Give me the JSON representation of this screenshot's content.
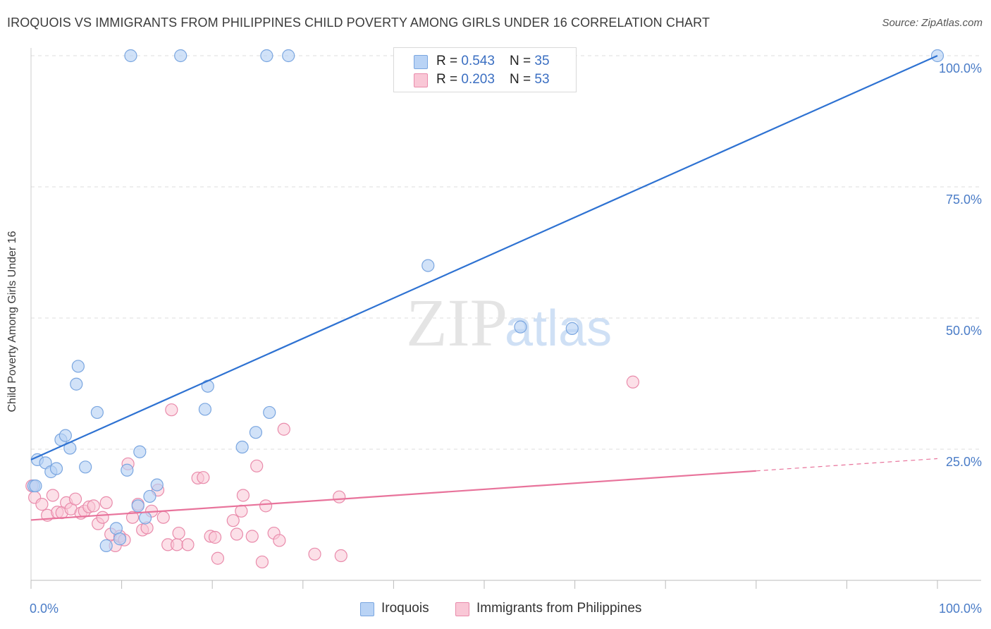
{
  "header": {
    "title": "IROQUOIS VS IMMIGRANTS FROM PHILIPPINES CHILD POVERTY AMONG GIRLS UNDER 16 CORRELATION CHART",
    "source": "Source: ZipAtlas.com"
  },
  "watermark": {
    "zip": "ZIP",
    "atlas": "atlas"
  },
  "legend": {
    "rows": [
      {
        "r_label": "R = ",
        "r_value": "0.543",
        "n_label": "N = ",
        "n_value": "35"
      },
      {
        "r_label": "R = ",
        "r_value": "0.203",
        "n_label": "N = ",
        "n_value": "53"
      }
    ]
  },
  "bottom_legend": {
    "items": [
      {
        "label": "Iroquois"
      },
      {
        "label": "Immigrants from Philippines"
      }
    ]
  },
  "colors": {
    "iroquois_fill": "#b9d3f5",
    "iroquois_stroke": "#7aa6e0",
    "iroquois_line": "#2e72d2",
    "philippines_fill": "#f9c7d6",
    "philippines_stroke": "#e98bab",
    "philippines_line": "#e8739b",
    "tick_text": "#4a7cc7",
    "grid": "#dddddd"
  },
  "chart_data": {
    "type": "scatter",
    "title": "IROQUOIS VS IMMIGRANTS FROM PHILIPPINES CHILD POVERTY AMONG GIRLS UNDER 16 CORRELATION CHART",
    "xlabel": "",
    "ylabel": "Child Poverty Among Girls Under 16",
    "xlim": [
      0,
      100
    ],
    "ylim": [
      0,
      100
    ],
    "x_tick_labels": [
      "0.0%",
      "100.0%"
    ],
    "y_tick_labels": [
      "25.0%",
      "50.0%",
      "75.0%",
      "100.0%"
    ],
    "y_ticks": [
      25,
      50,
      75,
      100
    ],
    "grid": true,
    "legend_placement": "top-center",
    "series": [
      {
        "name": "Iroquois",
        "r": 0.543,
        "n": 35,
        "trend": {
          "x": [
            0,
            100
          ],
          "y": [
            23.0,
            100.0
          ],
          "dashed_from": null
        },
        "points": [
          [
            0.3,
            18.0
          ],
          [
            0.5,
            18.0
          ],
          [
            0.7,
            23.0
          ],
          [
            1.6,
            22.4
          ],
          [
            2.2,
            20.7
          ],
          [
            2.8,
            21.3
          ],
          [
            3.3,
            26.8
          ],
          [
            3.8,
            27.6
          ],
          [
            4.3,
            25.2
          ],
          [
            5.0,
            37.4
          ],
          [
            5.2,
            40.8
          ],
          [
            6.0,
            21.6
          ],
          [
            7.3,
            32.0
          ],
          [
            8.3,
            6.6
          ],
          [
            9.4,
            9.9
          ],
          [
            9.8,
            7.9
          ],
          [
            10.6,
            21.0
          ],
          [
            11.0,
            100.0
          ],
          [
            11.8,
            14.2
          ],
          [
            12.0,
            24.5
          ],
          [
            12.6,
            11.9
          ],
          [
            13.1,
            16.0
          ],
          [
            13.9,
            18.2
          ],
          [
            16.5,
            100.0
          ],
          [
            19.2,
            32.6
          ],
          [
            19.5,
            37.0
          ],
          [
            23.3,
            25.4
          ],
          [
            24.8,
            28.2
          ],
          [
            26.0,
            100.0
          ],
          [
            26.3,
            32.0
          ],
          [
            28.4,
            100.0
          ],
          [
            43.8,
            60.0
          ],
          [
            54.0,
            48.3
          ],
          [
            59.7,
            48.0
          ],
          [
            100.0,
            100.0
          ]
        ]
      },
      {
        "name": "Immigrants from Philippines",
        "r": 0.203,
        "n": 53,
        "trend": {
          "x": [
            0,
            100
          ],
          "y": [
            11.5,
            23.2
          ],
          "dashed_from": 80
        },
        "points": [
          [
            0.1,
            18.0
          ],
          [
            0.4,
            15.8
          ],
          [
            1.2,
            14.5
          ],
          [
            1.8,
            12.4
          ],
          [
            2.4,
            16.2
          ],
          [
            2.9,
            13.0
          ],
          [
            3.4,
            12.9
          ],
          [
            3.9,
            14.8
          ],
          [
            4.4,
            13.6
          ],
          [
            4.9,
            15.5
          ],
          [
            5.5,
            12.8
          ],
          [
            5.9,
            13.2
          ],
          [
            6.4,
            14.0
          ],
          [
            6.9,
            14.2
          ],
          [
            7.4,
            10.8
          ],
          [
            7.9,
            12.0
          ],
          [
            8.3,
            14.8
          ],
          [
            8.8,
            8.8
          ],
          [
            9.3,
            6.6
          ],
          [
            9.8,
            8.4
          ],
          [
            10.3,
            7.7
          ],
          [
            10.7,
            22.2
          ],
          [
            11.2,
            12.0
          ],
          [
            11.8,
            14.5
          ],
          [
            12.3,
            9.6
          ],
          [
            12.8,
            10.0
          ],
          [
            13.3,
            13.2
          ],
          [
            14.0,
            17.2
          ],
          [
            14.6,
            12.0
          ],
          [
            15.1,
            6.8
          ],
          [
            15.5,
            32.5
          ],
          [
            16.1,
            6.8
          ],
          [
            16.3,
            9.0
          ],
          [
            17.3,
            6.8
          ],
          [
            18.4,
            19.5
          ],
          [
            19.0,
            19.6
          ],
          [
            19.8,
            8.4
          ],
          [
            20.3,
            8.2
          ],
          [
            20.6,
            4.2
          ],
          [
            22.3,
            11.4
          ],
          [
            22.7,
            8.8
          ],
          [
            23.2,
            13.2
          ],
          [
            23.4,
            16.2
          ],
          [
            24.4,
            8.4
          ],
          [
            24.9,
            21.8
          ],
          [
            25.5,
            3.5
          ],
          [
            25.9,
            14.2
          ],
          [
            26.8,
            9.0
          ],
          [
            27.4,
            7.6
          ],
          [
            27.9,
            28.8
          ],
          [
            31.3,
            5.0
          ],
          [
            34.0,
            15.9
          ],
          [
            34.2,
            4.7
          ],
          [
            66.4,
            37.8
          ]
        ]
      }
    ]
  }
}
